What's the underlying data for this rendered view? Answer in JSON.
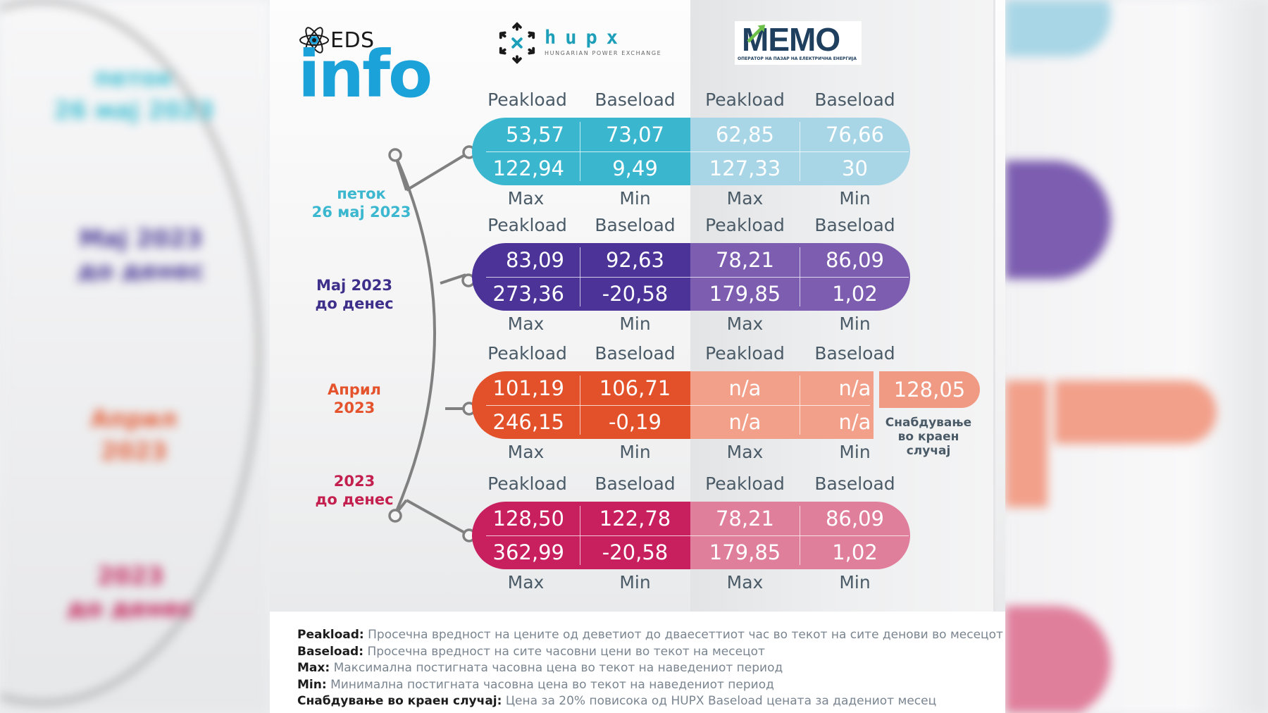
{
  "logos": {
    "eds_small": "EDS",
    "eds_big": "info",
    "hupx_name": "hupx",
    "hupx_sub": "HUNGARIAN POWER EXCHANGE",
    "memo_name": "MEMO",
    "memo_sub": "ОПЕРАТОР НА ПАЗАР НА ЕЛЕКТРИЧНА ЕНЕРГИЈА"
  },
  "groups": [
    {
      "period": [
        "петок",
        "26 мај 2023"
      ],
      "color_label": "#3bb8cf",
      "headers": [
        "Peakload",
        "Baseload",
        "Peakload",
        "Baseload"
      ],
      "row_max_avg": [
        "53,57",
        "73,07",
        "62,85",
        "76,66"
      ],
      "row_extremes": [
        "122,94",
        "9,49",
        "127,33",
        "30"
      ],
      "footers": [
        "Max",
        "Min",
        "Max",
        "Min"
      ]
    },
    {
      "period": [
        "Мај 2023",
        "до денес"
      ],
      "color_label": "#3d2f8a",
      "headers": [
        "Peakload",
        "Baseload",
        "Peakload",
        "Baseload"
      ],
      "row_max_avg": [
        "83,09",
        "92,63",
        "78,21",
        "86,09"
      ],
      "row_extremes": [
        "273,36",
        "-20,58",
        "179,85",
        "1,02"
      ],
      "footers": [
        "Max",
        "Min",
        "Max",
        "Min"
      ]
    },
    {
      "period": [
        "Април",
        "2023"
      ],
      "color_label": "#e4532c",
      "headers": [
        "Peakload",
        "Baseload",
        "Peakload",
        "Baseload"
      ],
      "row_max_avg": [
        "101,19",
        "106,71",
        "n/a",
        "n/a"
      ],
      "row_extremes": [
        "246,15",
        "-0,19",
        "n/a",
        "n/a"
      ],
      "footers": [
        "Max",
        "Min",
        "Max",
        "Min"
      ],
      "last_resort_value": "128,05",
      "last_resort_label": [
        "Снабдување",
        "во краен",
        "случај"
      ]
    },
    {
      "period": [
        "2023",
        "до денес"
      ],
      "color_label": "#c4204f",
      "headers": [
        "Peakload",
        "Baseload",
        "Peakload",
        "Baseload"
      ],
      "row_max_avg": [
        "128,50",
        "122,78",
        "78,21",
        "86,09"
      ],
      "row_extremes": [
        "362,99",
        "-20,58",
        "179,85",
        "1,02"
      ],
      "footers": [
        "Max",
        "Min",
        "Max",
        "Min"
      ]
    }
  ],
  "colors": {
    "hupx": [
      "#3ab7cf",
      "#4b3397",
      "#e3512a",
      "#c81f5f"
    ],
    "memo": [
      "#a8d6e6",
      "#7c5db0",
      "#f2a08a",
      "#e07f9c"
    ]
  },
  "legend": [
    {
      "term": "Peakload:",
      "text": "Просечна вредност на цените од деветиот до дваесеттиот час во текот на сите денови во месецот"
    },
    {
      "term": "Baseload:",
      "text": "Просечна вредност на сите часовни цени во текот на месецот"
    },
    {
      "term": "Max:",
      "text": "Максимална постигната часовна цена во текот на наведениот период"
    },
    {
      "term": "Min:",
      "text": "Минимална постигната часовна цена во текот на наведениот период"
    },
    {
      "term": "Снабдување во краен случај:",
      "text": "Цена за 20% повисока од HUPX Baseload цената за дадениот месец"
    }
  ]
}
